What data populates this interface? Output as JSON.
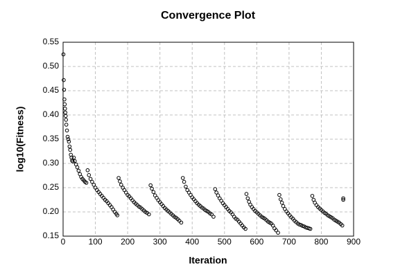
{
  "chart_data": {
    "type": "scatter",
    "title": "Convergence Plot",
    "x_label": "Iteration",
    "y_label": "log10(Fitness)",
    "color": "#000000",
    "grid": true,
    "xlim": [
      0,
      900
    ],
    "xticks": [
      0,
      100,
      200,
      300,
      400,
      500,
      600,
      700,
      800,
      900
    ],
    "ylim": [
      0.15,
      0.55
    ],
    "yticks": [
      0.15,
      {
        "value": 0.2,
        "label": "0.20"
      },
      0.25,
      {
        "value": 0.3,
        "label": "0.30"
      },
      0.35,
      {
        "value": 0.4,
        "label": "0.40"
      },
      0.45,
      {
        "value": 0.5,
        "label": "0.50"
      },
      0.55
    ],
    "x": [
      1,
      2,
      3,
      4,
      5,
      6,
      7,
      8,
      9,
      10,
      12,
      14,
      16,
      18,
      20,
      22,
      24,
      26,
      28,
      30,
      33,
      36,
      40,
      44,
      48,
      52,
      56,
      60,
      64,
      68,
      72,
      76,
      80,
      85,
      90,
      95,
      100,
      105,
      110,
      115,
      120,
      125,
      130,
      135,
      140,
      145,
      150,
      155,
      160,
      165,
      168,
      172,
      176,
      180,
      185,
      190,
      195,
      200,
      205,
      210,
      215,
      220,
      225,
      230,
      235,
      240,
      245,
      250,
      255,
      260,
      266,
      271,
      275,
      280,
      285,
      290,
      295,
      300,
      305,
      310,
      315,
      320,
      325,
      330,
      335,
      340,
      345,
      350,
      355,
      360,
      366,
      371,
      375,
      380,
      385,
      390,
      395,
      400,
      405,
      410,
      415,
      420,
      425,
      430,
      435,
      440,
      445,
      450,
      455,
      460,
      466,
      471,
      475,
      480,
      485,
      490,
      495,
      500,
      505,
      510,
      515,
      520,
      525,
      530,
      535,
      540,
      545,
      550,
      555,
      560,
      565,
      568,
      572,
      576,
      580,
      585,
      590,
      595,
      600,
      605,
      610,
      615,
      620,
      625,
      630,
      635,
      640,
      645,
      650,
      655,
      660,
      666,
      670,
      674,
      678,
      682,
      687,
      692,
      697,
      702,
      707,
      712,
      717,
      722,
      727,
      732,
      737,
      742,
      747,
      752,
      757,
      762,
      766,
      772,
      776,
      780,
      785,
      790,
      795,
      800,
      805,
      810,
      815,
      820,
      825,
      830,
      835,
      840,
      845,
      850,
      855,
      860,
      865,
      868,
      868
    ],
    "values": [
      0.525,
      0.472,
      0.452,
      0.432,
      0.422,
      0.413,
      0.405,
      0.398,
      0.39,
      0.38,
      0.368,
      0.355,
      0.35,
      0.345,
      0.335,
      0.328,
      0.318,
      0.312,
      0.306,
      0.304,
      0.312,
      0.305,
      0.298,
      0.292,
      0.285,
      0.278,
      0.272,
      0.268,
      0.265,
      0.262,
      0.26,
      0.286,
      0.276,
      0.268,
      0.262,
      0.256,
      0.25,
      0.245,
      0.241,
      0.237,
      0.233,
      0.229,
      0.225,
      0.222,
      0.218,
      0.214,
      0.21,
      0.205,
      0.2,
      0.196,
      0.193,
      0.27,
      0.263,
      0.256,
      0.25,
      0.245,
      0.24,
      0.235,
      0.232,
      0.228,
      0.224,
      0.22,
      0.217,
      0.214,
      0.211,
      0.209,
      0.206,
      0.203,
      0.2,
      0.198,
      0.195,
      0.255,
      0.248,
      0.241,
      0.234,
      0.229,
      0.224,
      0.22,
      0.216,
      0.212,
      0.208,
      0.205,
      0.202,
      0.199,
      0.196,
      0.193,
      0.19,
      0.188,
      0.185,
      0.182,
      0.178,
      0.27,
      0.262,
      0.252,
      0.245,
      0.24,
      0.235,
      0.23,
      0.226,
      0.222,
      0.218,
      0.215,
      0.212,
      0.209,
      0.207,
      0.204,
      0.202,
      0.2,
      0.197,
      0.195,
      0.19,
      0.247,
      0.24,
      0.234,
      0.228,
      0.223,
      0.218,
      0.214,
      0.21,
      0.206,
      0.202,
      0.199,
      0.195,
      0.19,
      0.186,
      0.184,
      0.18,
      0.176,
      0.172,
      0.168,
      0.165,
      0.237,
      0.228,
      0.221,
      0.215,
      0.21,
      0.206,
      0.202,
      0.199,
      0.196,
      0.193,
      0.19,
      0.188,
      0.186,
      0.183,
      0.18,
      0.178,
      0.176,
      0.172,
      0.166,
      0.162,
      0.157,
      0.235,
      0.226,
      0.219,
      0.212,
      0.206,
      0.201,
      0.197,
      0.193,
      0.189,
      0.186,
      0.182,
      0.179,
      0.176,
      0.174,
      0.173,
      0.171,
      0.17,
      0.168,
      0.167,
      0.166,
      0.165,
      0.233,
      0.225,
      0.219,
      0.214,
      0.21,
      0.207,
      0.204,
      0.201,
      0.198,
      0.196,
      0.193,
      0.191,
      0.189,
      0.187,
      0.184,
      0.182,
      0.18,
      0.178,
      0.175,
      0.172,
      0.228,
      0.225
    ]
  }
}
